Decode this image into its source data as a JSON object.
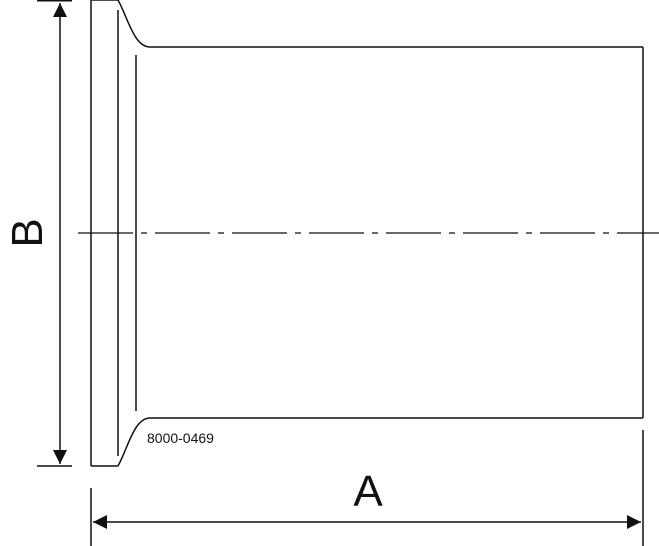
{
  "drawing": {
    "part_number": "8000-0469",
    "dimension_a_label": "A",
    "dimension_b_label": "B",
    "line_color": "#111111",
    "background": "#ffffff"
  }
}
